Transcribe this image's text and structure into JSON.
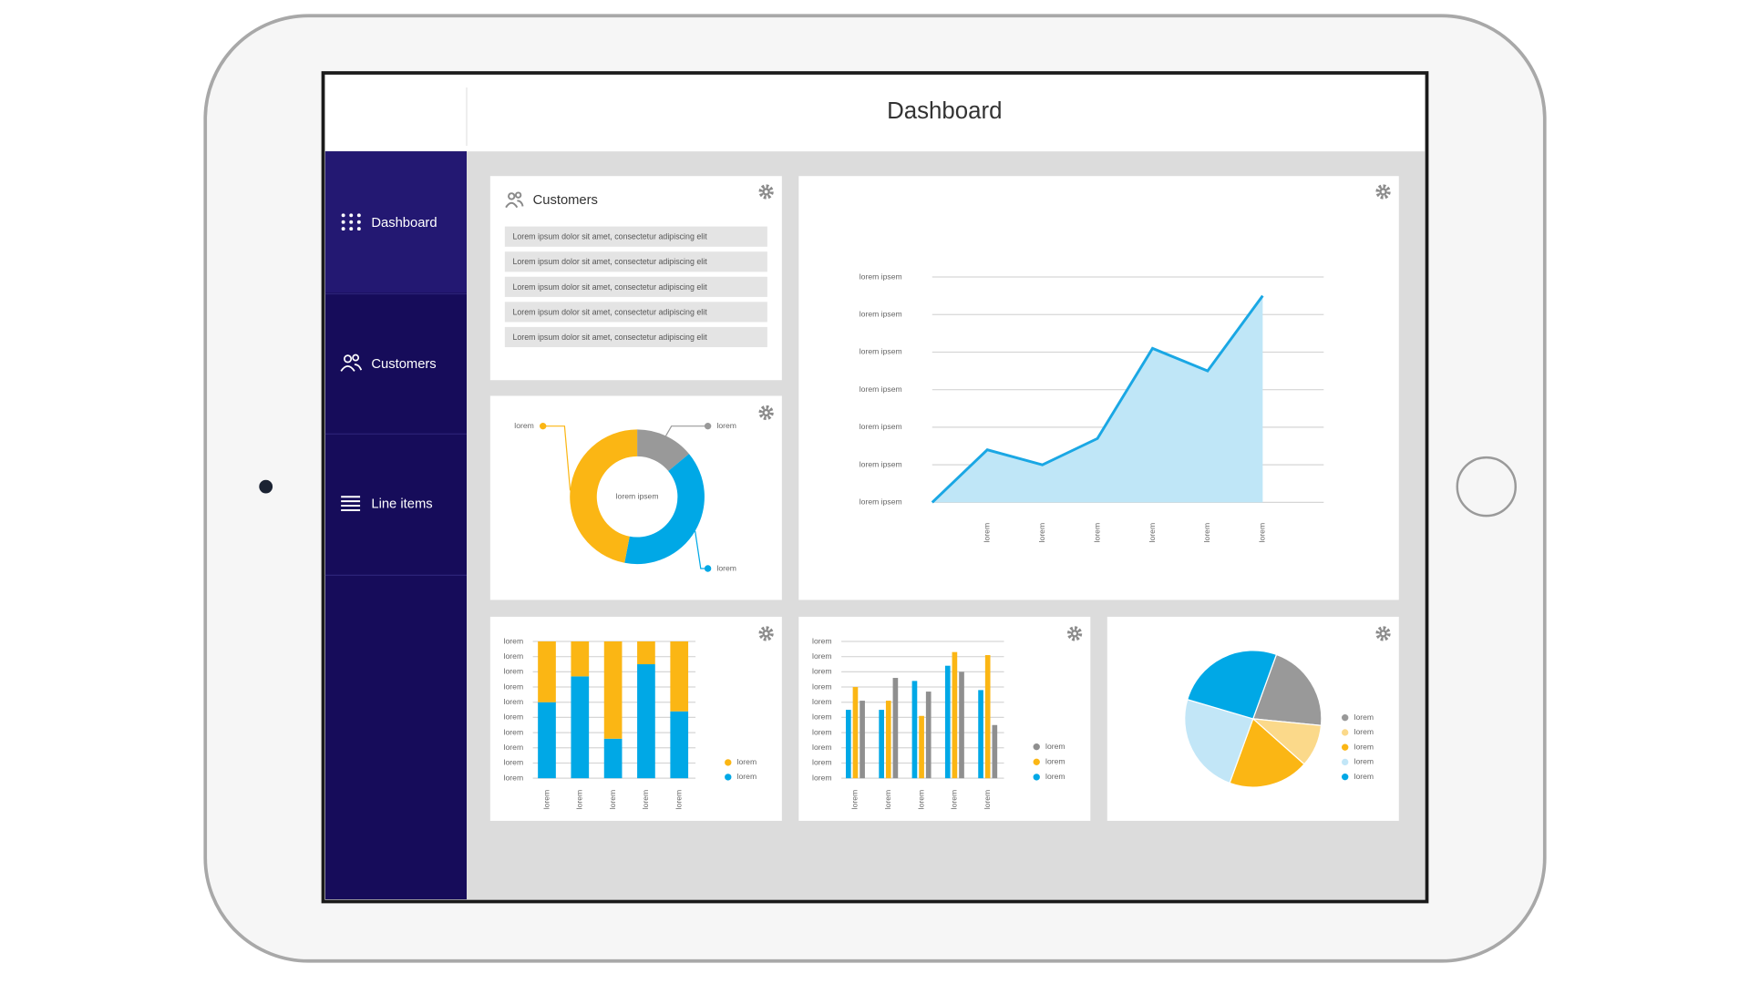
{
  "header": {
    "title": "Dashboard"
  },
  "nav": [
    {
      "label": "Dashboard"
    },
    {
      "label": "Customers"
    },
    {
      "label": "Line items"
    }
  ],
  "customers": {
    "title": "Customers",
    "rows": [
      "Lorem ipsum dolor sit amet, consectetur adipiscing elit",
      "Lorem ipsum dolor sit amet, consectetur adipiscing elit",
      "Lorem ipsum dolor sit amet, consectetur adipiscing elit",
      "Lorem ipsum dolor sit amet, consectetur adipiscing elit",
      "Lorem ipsum dolor sit amet, consectetur adipiscing elit"
    ]
  },
  "chart_data": [
    {
      "type": "donut",
      "center_label": "lorem ipsem",
      "categories": [
        "lorem",
        "lorem",
        "lorem"
      ],
      "values": [
        14,
        39,
        47
      ],
      "colors": [
        "#999999",
        "#00a8e6",
        "#fbb614"
      ]
    },
    {
      "type": "area",
      "categories": [
        null,
        "lorem",
        "lorem",
        "lorem",
        "lorem",
        "lorem",
        "lorem"
      ],
      "values": [
        0,
        1.4,
        1.0,
        1.7,
        4.1,
        3.5,
        5.5
      ],
      "color": "#1aa7e4",
      "fill": "#bfe6f7",
      "ylim": [
        0,
        6
      ],
      "yticks": [
        {
          "value": 0,
          "label": "lorem ipsem"
        },
        {
          "value": 1,
          "label": "lorem ipsem"
        },
        {
          "value": 2,
          "label": "lorem ipsem"
        },
        {
          "value": 3,
          "label": "lorem ipsem"
        },
        {
          "value": 4,
          "label": "lorem ipsem"
        },
        {
          "value": 5,
          "label": "lorem ipsem"
        },
        {
          "value": 6,
          "label": "lorem ipsem"
        }
      ],
      "grid": true
    },
    {
      "type": "stacked_bar",
      "categories": [
        "lorem",
        "lorem",
        "lorem",
        "lorem",
        "lorem"
      ],
      "series": [
        {
          "name": "lorem",
          "color": "#00a8e6",
          "values": [
            5.0,
            6.7,
            2.6,
            7.5,
            4.4
          ]
        },
        {
          "name": "lorem",
          "color": "#fbb614",
          "values": [
            4.0,
            2.3,
            6.4,
            1.5,
            4.6
          ]
        }
      ],
      "ylim": [
        0,
        9
      ],
      "yticks": [
        {
          "value": 0,
          "label": "lorem"
        },
        {
          "value": 1,
          "label": "lorem"
        },
        {
          "value": 2,
          "label": "lorem"
        },
        {
          "value": 3,
          "label": "lorem"
        },
        {
          "value": 4,
          "label": "lorem"
        },
        {
          "value": 5,
          "label": "lorem"
        },
        {
          "value": 6,
          "label": "lorem"
        },
        {
          "value": 7,
          "label": "lorem"
        },
        {
          "value": 8,
          "label": "lorem"
        },
        {
          "value": 9,
          "label": "lorem"
        }
      ],
      "grid": true,
      "legend": "right"
    },
    {
      "type": "grouped_bar",
      "categories": [
        "lorem",
        "lorem",
        "lorem",
        "lorem",
        "lorem"
      ],
      "series": [
        {
          "name": "lorem",
          "color": "#00a8e6",
          "values": [
            4.5,
            4.5,
            6.4,
            7.4,
            5.8
          ]
        },
        {
          "name": "lorem",
          "color": "#fbb614",
          "values": [
            6.0,
            5.1,
            4.1,
            8.3,
            8.1
          ]
        },
        {
          "name": "lorem",
          "color": "#8f8f8f",
          "values": [
            5.1,
            6.6,
            5.7,
            7.0,
            3.5
          ]
        }
      ],
      "ylim": [
        0,
        9
      ],
      "yticks": [
        {
          "value": 0,
          "label": "lorem"
        },
        {
          "value": 1,
          "label": "lorem"
        },
        {
          "value": 2,
          "label": "lorem"
        },
        {
          "value": 3,
          "label": "lorem"
        },
        {
          "value": 4,
          "label": "lorem"
        },
        {
          "value": 5,
          "label": "lorem"
        },
        {
          "value": 6,
          "label": "lorem"
        },
        {
          "value": 7,
          "label": "lorem"
        },
        {
          "value": 8,
          "label": "lorem"
        },
        {
          "value": 9,
          "label": "lorem"
        }
      ],
      "grid": true,
      "legend": "right"
    },
    {
      "type": "pie",
      "categories": [
        "lorem",
        "lorem",
        "lorem",
        "lorem",
        "lorem"
      ],
      "values": [
        21,
        10,
        19,
        24,
        26
      ],
      "colors": [
        "#999999",
        "#fbd98a",
        "#fbb614",
        "#c2e6f7",
        "#00a8e6"
      ],
      "legend": "right"
    }
  ]
}
